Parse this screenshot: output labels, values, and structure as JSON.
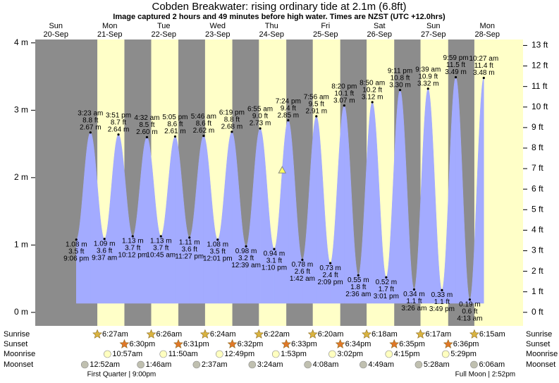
{
  "chart_data": {
    "type": "tide",
    "title": "Cobden Breakwater: rising  ordinary tide at 2.1m (6.8ft)",
    "subtitle": "Image captured 2 hours and 49 minutes before high water. Times are NZST (UTC +12.0hrs)",
    "ylim": [
      -0.2,
      4.05
    ],
    "yticks": [
      {
        "value": 0,
        "label": "0 m"
      },
      {
        "value": 1,
        "label": "1 m"
      },
      {
        "value": 2,
        "label": "2 m"
      },
      {
        "value": 3,
        "label": "3 m"
      },
      {
        "value": 4,
        "label": "4 m"
      }
    ],
    "y2lim": [
      -0.66,
      13.29
    ],
    "y2ticks": [
      {
        "value": 0,
        "label": "0 ft"
      },
      {
        "value": 1,
        "label": "1 ft"
      },
      {
        "value": 2,
        "label": "2 ft"
      },
      {
        "value": 3,
        "label": "3 ft"
      },
      {
        "value": 4,
        "label": "4 ft"
      },
      {
        "value": 5,
        "label": "5 ft"
      },
      {
        "value": 6,
        "label": "6 ft"
      },
      {
        "value": 7,
        "label": "7 ft"
      },
      {
        "value": 8,
        "label": "8 ft"
      },
      {
        "value": 9,
        "label": "9 ft"
      },
      {
        "value": 10,
        "label": "10 ft"
      },
      {
        "value": 11,
        "label": "11 ft"
      },
      {
        "value": 12,
        "label": "12 ft"
      },
      {
        "value": 13,
        "label": "13 ft"
      }
    ],
    "colors": {
      "night": "#8c8c8c",
      "day": "#ffffc8",
      "tide": "#a3abff",
      "header": "#cc0000",
      "sunrise": "#d9b340",
      "sunset": "#e07828",
      "moonrise": "#ffffc0",
      "moonset": "#c0c0b0"
    },
    "row_labels": {
      "sunrise": "Sunrise",
      "sunset": "Sunset",
      "moonrise": "Moonrise",
      "moonset": "Moonset"
    },
    "days": [
      {
        "name": "Sun",
        "date": "20-Sep",
        "tides": [
          {
            "time": "9:06 pm",
            "m": 1.08,
            "m_label": "1.08 m",
            "ft_label": "3.5 ft"
          }
        ]
      },
      {
        "name": "Mon",
        "date": "21-Sep",
        "sunrise": "6:27am",
        "sunset": "6:30pm",
        "moonrise": "10:57am",
        "moonset": "12:52am",
        "moon_phase": "First Quarter | 9:00pm",
        "tides": [
          {
            "time": "3:23 am",
            "m": 2.67,
            "m_label": "2.67 m",
            "ft_label": "8.8 ft"
          },
          {
            "time": "9:37 am",
            "m": 1.09,
            "m_label": "1.09 m",
            "ft_label": "3.6 ft"
          },
          {
            "time": "3:51 pm",
            "m": 2.64,
            "m_label": "2.64 m",
            "ft_label": "8.7 ft"
          },
          {
            "time": "10:12 pm",
            "m": 1.13,
            "m_label": "1.13 m",
            "ft_label": "3.7 ft"
          }
        ]
      },
      {
        "name": "Tue",
        "date": "22-Sep",
        "sunrise": "6:26am",
        "sunset": "6:31pm",
        "moonrise": "11:50am",
        "moonset": "1:46am",
        "tides": [
          {
            "time": "4:32 am",
            "m": 2.6,
            "m_label": "2.60 m",
            "ft_label": "8.5 ft"
          },
          {
            "time": "10:45 am",
            "m": 1.13,
            "m_label": "1.13 m",
            "ft_label": "3.7 ft"
          },
          {
            "time": "5:05 pm",
            "m": 2.61,
            "m_label": "2.61 m",
            "ft_label": "8.6 ft"
          },
          {
            "time": "11:27 pm",
            "m": 1.11,
            "m_label": "1.11 m",
            "ft_label": "3.6 ft"
          }
        ]
      },
      {
        "name": "Wed",
        "date": "23-Sep",
        "sunrise": "6:24am",
        "sunset": "6:32pm",
        "moonrise": "12:49pm",
        "moonset": "2:37am",
        "tides": [
          {
            "time": "5:46 am",
            "m": 2.62,
            "m_label": "2.62 m",
            "ft_label": "8.6 ft"
          },
          {
            "time": "12:01 pm",
            "m": 1.08,
            "m_label": "1.08 m",
            "ft_label": "3.5 ft"
          },
          {
            "time": "6:19 pm",
            "m": 2.68,
            "m_label": "2.68 m",
            "ft_label": "8.8 ft"
          }
        ]
      },
      {
        "name": "Thu",
        "date": "24-Sep",
        "sunrise": "6:22am",
        "sunset": "6:33pm",
        "moonrise": "1:53pm",
        "moonset": "3:24am",
        "level_now": 2.1,
        "tides": [
          {
            "time": "12:39 am",
            "m": 0.98,
            "m_label": "0.98 m",
            "ft_label": "3.2 ft"
          },
          {
            "time": "6:55 am",
            "m": 2.73,
            "m_label": "2.73 m",
            "ft_label": "9.0 ft"
          },
          {
            "time": "1:10 pm",
            "m": 0.94,
            "m_label": "0.94 m",
            "ft_label": "3.1 ft"
          },
          {
            "time": "7:24 pm",
            "m": 2.85,
            "m_label": "2.85 m",
            "ft_label": "9.4 ft"
          }
        ]
      },
      {
        "name": "Fri",
        "date": "25-Sep",
        "sunrise": "6:20am",
        "sunset": "6:34pm",
        "moonrise": "3:02pm",
        "moonset": "4:08am",
        "tides": [
          {
            "time": "1:42 am",
            "m": 0.78,
            "m_label": "0.78 m",
            "ft_label": "2.6 ft"
          },
          {
            "time": "7:56 am",
            "m": 2.91,
            "m_label": "2.91 m",
            "ft_label": "9.5 ft"
          },
          {
            "time": "2:09 pm",
            "m": 0.73,
            "m_label": "0.73 m",
            "ft_label": "2.4 ft"
          },
          {
            "time": "8:20 pm",
            "m": 3.07,
            "m_label": "3.07 m",
            "ft_label": "10.1 ft"
          }
        ]
      },
      {
        "name": "Sat",
        "date": "26-Sep",
        "sunrise": "6:18am",
        "sunset": "6:35pm",
        "moonrise": "4:15pm",
        "moonset": "4:49am",
        "tides": [
          {
            "time": "2:36 am",
            "m": 0.55,
            "m_label": "0.55 m",
            "ft_label": "1.8 ft"
          },
          {
            "time": "8:50 am",
            "m": 3.12,
            "m_label": "3.12 m",
            "ft_label": "10.2 ft"
          },
          {
            "time": "3:01 pm",
            "m": 0.52,
            "m_label": "0.52 m",
            "ft_label": "1.7 ft"
          },
          {
            "time": "9:11 pm",
            "m": 3.3,
            "m_label": "3.30 m",
            "ft_label": "10.8 ft"
          }
        ]
      },
      {
        "name": "Sun",
        "date": "27-Sep",
        "sunrise": "6:17am",
        "sunset": "6:36pm",
        "moonrise": "5:29pm",
        "moonset": "5:28am",
        "tides": [
          {
            "time": "3:26 am",
            "m": 0.34,
            "m_label": "0.34 m",
            "ft_label": "1.1 ft"
          },
          {
            "time": "9:39 am",
            "m": 3.32,
            "m_label": "3.32 m",
            "ft_label": "10.9 ft"
          },
          {
            "time": "3:49 pm",
            "m": 0.33,
            "m_label": "0.33 m",
            "ft_label": "1.1 ft"
          },
          {
            "time": "9:59 pm",
            "m": 3.49,
            "m_label": "3.49 m",
            "ft_label": "11.5 ft"
          }
        ]
      },
      {
        "name": "Mon",
        "date": "28-Sep",
        "sunrise": "6:15am",
        "moonset": "6:06am",
        "moon_phase": "Full Moon | 2:52pm",
        "tides": [
          {
            "time": "4:13 am",
            "m": 0.19,
            "m_label": "0.19 m",
            "ft_label": "0.6 ft"
          },
          {
            "time": "10:27 am",
            "m": 3.48,
            "m_label": "3.48 m",
            "ft_label": "11.4 ft"
          }
        ]
      }
    ]
  }
}
